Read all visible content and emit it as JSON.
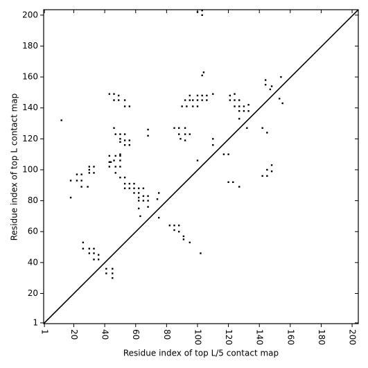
{
  "chart_data": {
    "type": "scatter",
    "xlabel": "Residue index of top L/5 contact map",
    "ylabel": "Residue index of top L contact map",
    "xlim": [
      0.5,
      204
    ],
    "ylim": [
      0.5,
      203.5
    ],
    "xticks": [
      1,
      20,
      40,
      60,
      80,
      100,
      120,
      140,
      160,
      180,
      200
    ],
    "yticks": [
      1,
      20,
      40,
      60,
      80,
      100,
      120,
      140,
      160,
      180,
      200
    ],
    "color": "#000000",
    "marker": "square",
    "diagonal": true,
    "x": [
      12,
      18,
      25,
      29,
      22,
      18,
      25,
      22,
      25,
      30,
      30,
      30,
      33,
      33,
      43,
      44,
      43,
      47,
      50,
      43,
      47,
      50,
      50,
      46,
      50,
      50,
      50,
      53,
      56,
      53,
      56,
      47,
      50,
      53,
      46,
      43,
      46,
      49,
      46,
      49,
      53,
      53,
      56,
      47,
      50,
      53,
      53,
      56,
      53,
      56,
      59,
      59,
      62,
      62,
      62,
      65,
      65,
      68,
      68,
      59,
      62,
      65,
      68,
      62,
      63,
      75,
      74,
      75,
      68,
      68,
      95,
      95,
      97,
      100,
      100,
      103,
      103,
      106,
      106,
      92,
      90,
      93,
      97,
      100,
      110,
      88,
      92,
      92,
      88,
      95,
      92,
      89,
      85,
      100,
      110,
      110,
      117,
      120,
      121,
      124,
      121,
      124,
      127,
      124,
      127,
      130,
      127,
      130,
      133,
      133,
      127,
      132,
      120,
      123,
      127,
      142,
      145,
      148,
      145,
      148,
      142,
      145,
      144,
      144,
      147,
      148,
      153,
      154,
      155,
      103,
      104,
      100,
      103,
      103,
      26,
      26,
      30,
      30,
      33,
      33,
      33,
      36,
      36,
      41,
      41,
      45,
      45,
      45,
      82,
      85,
      88,
      85,
      88,
      91,
      91,
      95,
      102
    ],
    "y": [
      132,
      82,
      89,
      89,
      93,
      93,
      93,
      97,
      97,
      98,
      100,
      102,
      98,
      102,
      105,
      105,
      102,
      102,
      102,
      109,
      109,
      109,
      106,
      106,
      110,
      118,
      120,
      119,
      119,
      116,
      116,
      123,
      123,
      123,
      127,
      149,
      149,
      148,
      145,
      145,
      145,
      141,
      141,
      98,
      95,
      95,
      91,
      91,
      88,
      88,
      88,
      85,
      85,
      82,
      80,
      80,
      83,
      80,
      83,
      91,
      88,
      88,
      76,
      75,
      70,
      69,
      81,
      85,
      122,
      126,
      148,
      145,
      145,
      145,
      148,
      148,
      145,
      148,
      145,
      145,
      141,
      141,
      141,
      141,
      149,
      127,
      127,
      123,
      123,
      123,
      119,
      120,
      127,
      106,
      116,
      120,
      110,
      110,
      148,
      149,
      145,
      145,
      145,
      141,
      141,
      141,
      138,
      138,
      138,
      142,
      133,
      127,
      92,
      92,
      89,
      96,
      96,
      99,
      100,
      103,
      127,
      124,
      155,
      158,
      152,
      154,
      146,
      160,
      143,
      161,
      163,
      202,
      200,
      203,
      53,
      49,
      49,
      46,
      46,
      49,
      42,
      42,
      45,
      36,
      33,
      33,
      30,
      36,
      64,
      64,
      64,
      61,
      60,
      57,
      55,
      53,
      46
    ]
  }
}
